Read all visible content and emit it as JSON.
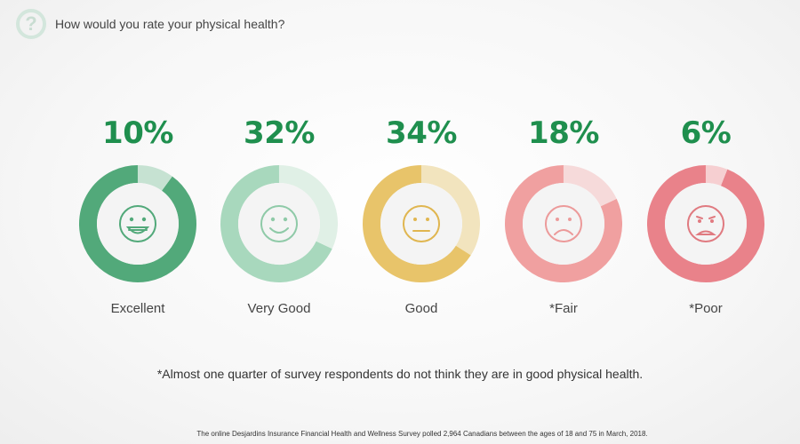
{
  "header": {
    "icon": "question-mark-icon",
    "icon_glyph": "?",
    "question": "How would you rate your physical health?"
  },
  "chart_data": {
    "type": "pie",
    "categories": [
      "Excellent",
      "Very Good",
      "Good",
      "*Fair",
      "*Poor"
    ],
    "values": [
      10,
      32,
      34,
      18,
      6
    ],
    "value_labels": [
      "10%",
      "32%",
      "34%",
      "18%",
      "6%"
    ],
    "colors": [
      {
        "main": "#52a97a",
        "light": "#c6e2d2",
        "face": "#52a97a"
      },
      {
        "main": "#a8d8bd",
        "light": "#e0f0e6",
        "face": "#8fcaa8"
      },
      {
        "main": "#e8c46a",
        "light": "#f2e4be",
        "face": "#e0b650"
      },
      {
        "main": "#f0a0a0",
        "light": "#f6dada",
        "face": "#ec9a9a"
      },
      {
        "main": "#e9828a",
        "light": "#f6cfd1",
        "face": "#e07a80"
      }
    ],
    "faces": [
      "grin-icon",
      "smile-icon",
      "neutral-icon",
      "frown-icon",
      "grimace-icon"
    ]
  },
  "footnote": "*Almost one quarter of survey respondents do not think they are in good physical health.",
  "source": "The online Desjardins Insurance Financial Health and Wellness Survey polled 2,964 Canadians between the ages of 18 and 75 in March, 2018."
}
